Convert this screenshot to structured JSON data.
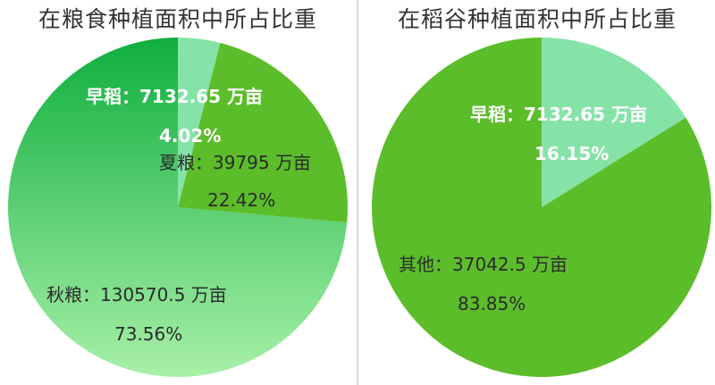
{
  "chart_data": [
    {
      "type": "pie",
      "title": "在粮食种植面积中所占比重",
      "unit": "万亩",
      "slices": [
        {
          "name": "早稻",
          "value": 7132.65,
          "percent": 4.02,
          "color": "#86e3a8",
          "label": "早稻：7132.65 万亩",
          "percent_label": "4.02%"
        },
        {
          "name": "夏粮",
          "value": 39795,
          "percent": 22.42,
          "color": "#5cbd2a",
          "label": "夏粮：39795 万亩",
          "percent_label": "22.42%"
        },
        {
          "name": "秋粮",
          "value": 130570.5,
          "percent": 73.56,
          "color": "#22b94b",
          "label": "秋粮：130570.5 万亩",
          "percent_label": "73.56%"
        }
      ]
    },
    {
      "type": "pie",
      "title": "在稻谷种植面积中所占比重",
      "unit": "万亩",
      "slices": [
        {
          "name": "早稻",
          "value": 7132.65,
          "percent": 16.15,
          "color": "#86e3a8",
          "label": "早稻：7132.65 万亩",
          "percent_label": "16.15%"
        },
        {
          "name": "其他",
          "value": 37042.5,
          "percent": 83.85,
          "color": "#5cbd2a",
          "label": "其他：37042.5 万亩",
          "percent_label": "83.85%"
        }
      ]
    }
  ],
  "colors": {
    "autumn_gradient_top": "#0fae3e",
    "autumn_gradient_bottom": "#a8f0a8"
  }
}
